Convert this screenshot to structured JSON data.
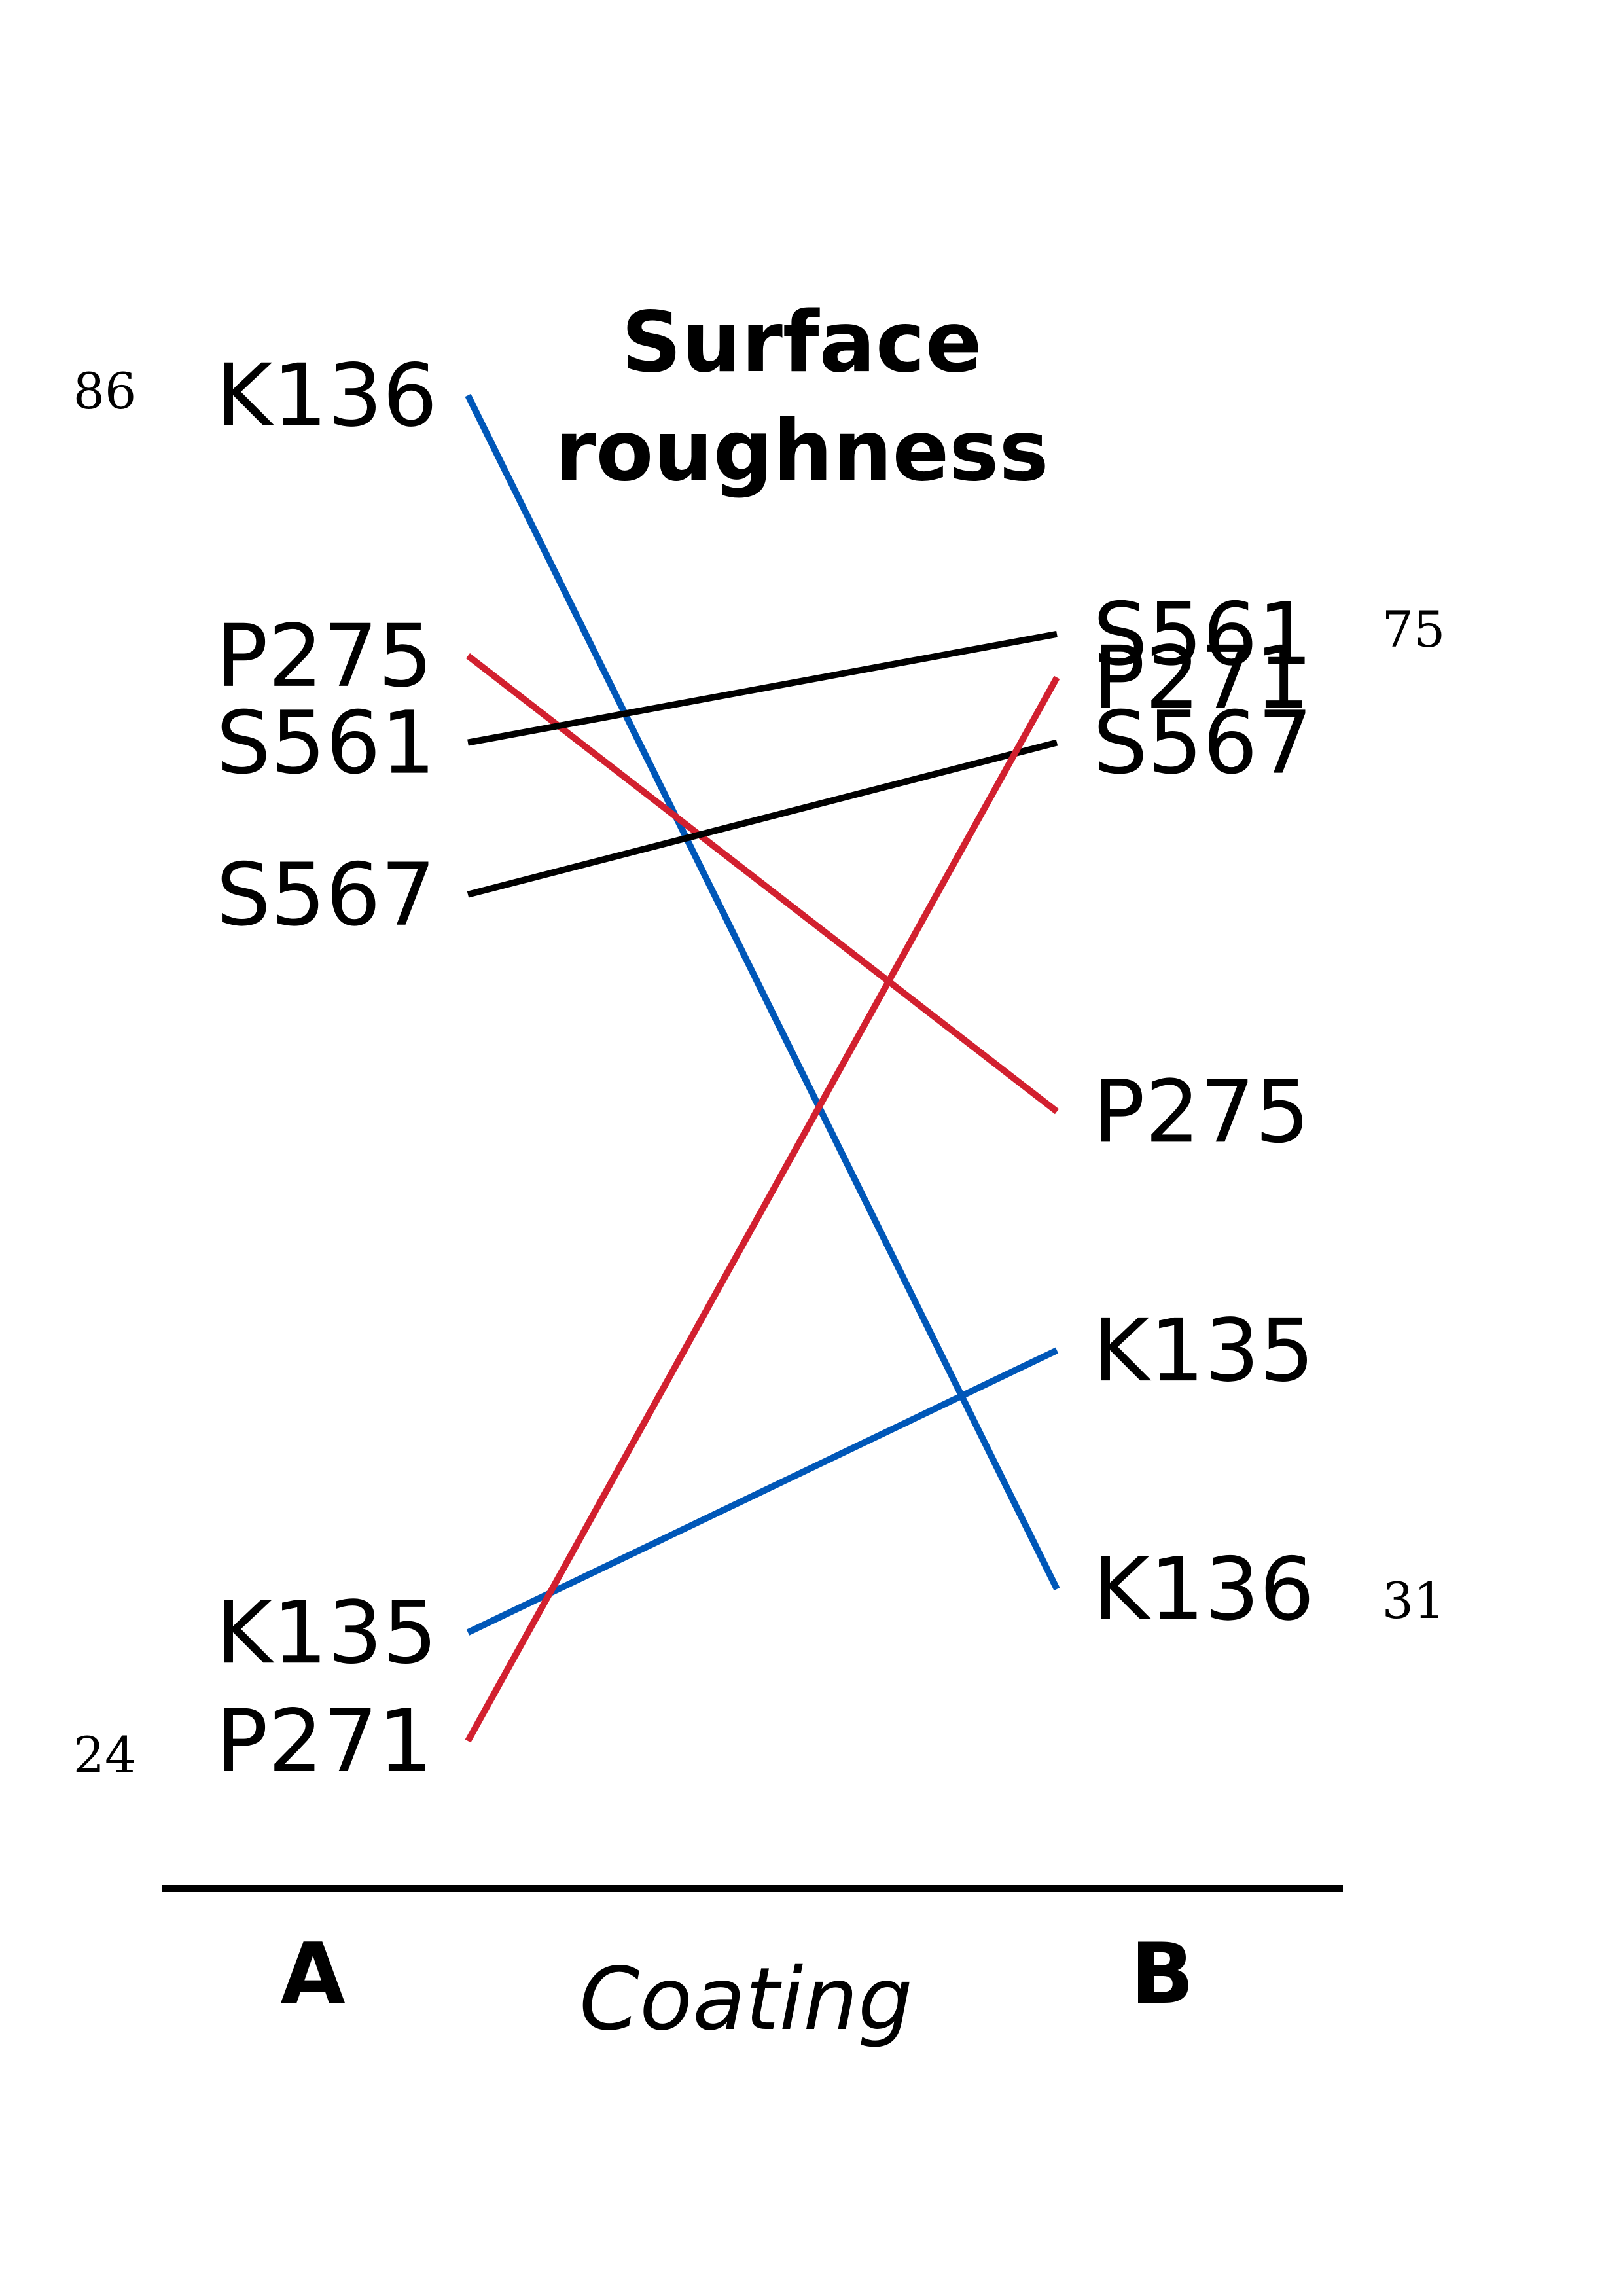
{
  "chart_data": {
    "type": "line",
    "chart_subtype": "slope",
    "title_lines": [
      "Surface",
      "roughness"
    ],
    "xlabel": "Coating",
    "categories": [
      "A",
      "B"
    ],
    "series": [
      {
        "name": "K136",
        "values": [
          86,
          31
        ],
        "color": "#0057b8"
      },
      {
        "name": "P275",
        "values": [
          74,
          53
        ],
        "color": "#d2202f"
      },
      {
        "name": "S561",
        "values": [
          70,
          75
        ],
        "color": "#000000"
      },
      {
        "name": "S567",
        "values": [
          63,
          70
        ],
        "color": "#000000"
      },
      {
        "name": "K135",
        "values": [
          29,
          42
        ],
        "color": "#0057b8"
      },
      {
        "name": "P271",
        "values": [
          24,
          73
        ],
        "color": "#d2202f"
      }
    ],
    "scale_labels": {
      "A": {
        "max": "86",
        "min": "24"
      },
      "B": {
        "max": "75",
        "min": "31"
      }
    }
  }
}
